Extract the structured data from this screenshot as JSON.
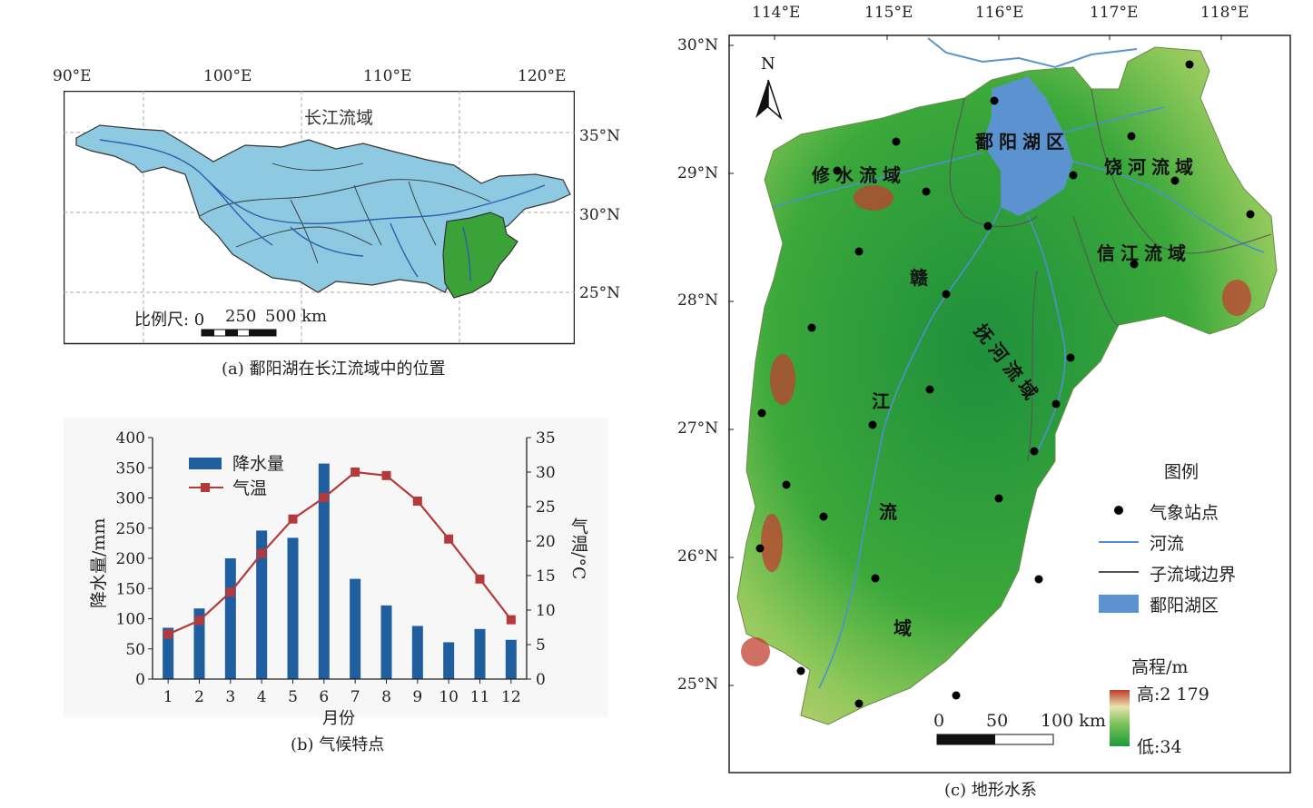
{
  "panel_a": {
    "caption": "(a) 鄱阳湖在长江流域中的位置",
    "basin_label": "长江流域",
    "lon_ticks": [
      "90°E",
      "100°E",
      "110°E",
      "120°E"
    ],
    "lat_ticks": [
      "35°N",
      "30°N",
      "25°N"
    ],
    "scale_label": "比例尺: 0",
    "scale_values": [
      "250",
      "500 km"
    ],
    "colors": {
      "basin": "#8ec9e2",
      "poyang": "#3aa238",
      "river": "#2b5fb0",
      "boundary": "#222222"
    }
  },
  "panel_b": {
    "caption": "(b) 气候特点",
    "xlabel": "月份",
    "ylabel_left": "降水量/mm",
    "ylabel_right": "气温/°C",
    "legend_precip": "降水量",
    "legend_temp": "气温",
    "chart_data": {
      "type": "bar",
      "categories": [
        "1",
        "2",
        "3",
        "4",
        "5",
        "6",
        "7",
        "8",
        "9",
        "10",
        "11",
        "12"
      ],
      "series": [
        {
          "name": "降水量",
          "type": "bar",
          "axis": "left",
          "color": "#1f5fa0",
          "values": [
            85,
            117,
            200,
            246,
            234,
            357,
            166,
            122,
            88,
            61,
            83,
            65
          ]
        },
        {
          "name": "气温",
          "type": "line",
          "axis": "right",
          "color": "#b5393a",
          "values": [
            6.5,
            8.5,
            12.6,
            18.2,
            23.2,
            26.3,
            30.0,
            29.5,
            25.8,
            20.3,
            14.5,
            8.6
          ]
        }
      ],
      "ylim_left": [
        0,
        400
      ],
      "ylim_right": [
        0,
        35
      ],
      "yticks_left": [
        "0",
        "50",
        "100",
        "150",
        "200",
        "250",
        "300",
        "350",
        "400"
      ],
      "yticks_right": [
        "0",
        "5",
        "10",
        "15",
        "20",
        "25",
        "30",
        "35"
      ]
    }
  },
  "panel_c": {
    "caption": "(c) 地形水系",
    "lon_ticks": [
      "114°E",
      "115°E",
      "116°E",
      "117°E",
      "118°E"
    ],
    "lat_ticks": [
      "30°N",
      "29°N",
      "28°N",
      "27°N",
      "26°N",
      "25°N"
    ],
    "north": "N",
    "regions": {
      "poyang": "鄱阳湖区",
      "xiushui": "修水流域",
      "raohe": "饶河流域",
      "xinjiang": "信江流域",
      "fuhe": "抚河流域",
      "ganjiang": [
        "赣",
        "江",
        "流",
        "域"
      ]
    },
    "legend": {
      "title": "图例",
      "station": "气象站点",
      "river": "河流",
      "boundary": "子流域边界",
      "lake": "鄱阳湖区"
    },
    "elevation": {
      "title": "高程/m",
      "high": "高:2 179",
      "low": "低:34"
    },
    "scale": {
      "labels": [
        "0",
        "50",
        "100 km"
      ]
    },
    "colors": {
      "lake": "#5a93cf",
      "river": "#4f8fd0",
      "station": "#000000",
      "high": "#c0392b",
      "low": "#1e9a3c"
    }
  }
}
